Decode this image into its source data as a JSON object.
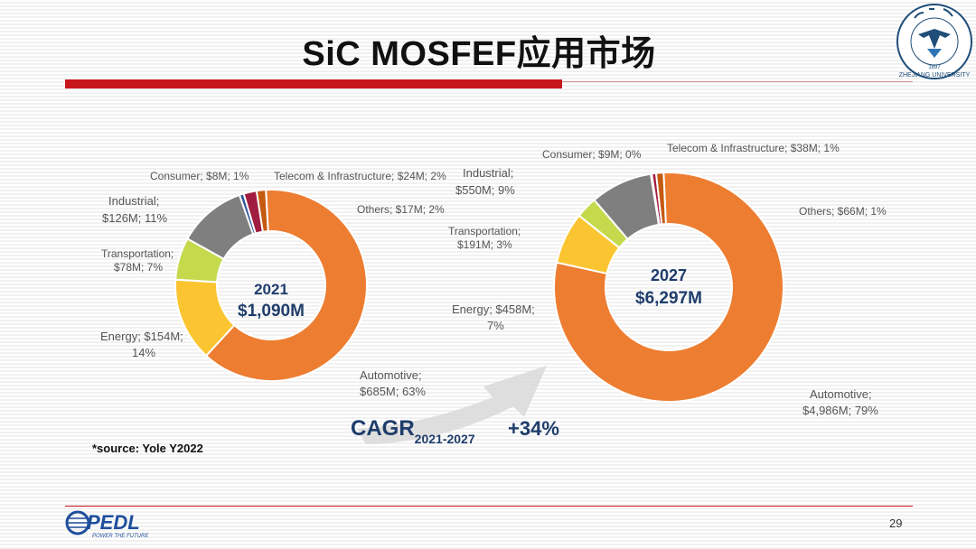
{
  "slide": {
    "title": "SiC MOSFEF应用市场",
    "page_number": "29",
    "source_note": "*source: Yole Y2022",
    "logo_text": "PEDL",
    "logo_tagline": "POWER THE FUTURE",
    "seal_text": "ZHEJIANG UNIVERSITY",
    "seal_year": "1897"
  },
  "cagr": {
    "prefix": "CAGR",
    "years": "2021-2027",
    "value": "+34%"
  },
  "colors": {
    "Automotive": "#ed7d31",
    "Energy": "#fbc531",
    "Transportation": "#c5d94c",
    "Industrial": "#7f7f7f",
    "Consumer": "#2f5597",
    "Telecom & Infrastructure": "#a11d3f",
    "Others": "#c55a11"
  },
  "chart_data": [
    {
      "type": "pie",
      "donut": true,
      "center_year": "2021",
      "center_value": "$1,090M",
      "slices": [
        {
          "name": "Automotive",
          "value": 685,
          "label1": "Automotive;",
          "label2": "$685M; 63%"
        },
        {
          "name": "Energy",
          "value": 154,
          "label1": "Energy; $154M;",
          "label2": "14%"
        },
        {
          "name": "Transportation",
          "value": 78,
          "label1": "Transportation;",
          "label2": "$78M; 7%"
        },
        {
          "name": "Industrial",
          "value": 126,
          "label1": "Industrial;",
          "label2": "$126M; 11%"
        },
        {
          "name": "Consumer",
          "value": 8,
          "label1": "Consumer; $8M; 1%",
          "label2": ""
        },
        {
          "name": "Telecom & Infrastructure",
          "value": 24,
          "label1": "Telecom & Infrastructure; $24M; 2%",
          "label2": ""
        },
        {
          "name": "Others",
          "value": 17,
          "label1": "Others; $17M; 2%",
          "label2": ""
        }
      ]
    },
    {
      "type": "pie",
      "donut": true,
      "center_year": "2027",
      "center_value": "$6,297M",
      "slices": [
        {
          "name": "Automotive",
          "value": 4986,
          "label1": "Automotive;",
          "label2": "$4,986M; 79%"
        },
        {
          "name": "Energy",
          "value": 458,
          "label1": "Energy; $458M;",
          "label2": "7%"
        },
        {
          "name": "Transportation",
          "value": 191,
          "label1": "Transportation;",
          "label2": "$191M; 3%"
        },
        {
          "name": "Industrial",
          "value": 550,
          "label1": "Industrial;",
          "label2": "$550M; 9%"
        },
        {
          "name": "Consumer",
          "value": 9,
          "label1": "Consumer; $9M; 0%",
          "label2": ""
        },
        {
          "name": "Telecom & Infrastructure",
          "value": 38,
          "label1": "Telecom & Infrastructure; $38M; 1%",
          "label2": ""
        },
        {
          "name": "Others",
          "value": 66,
          "label1": "Others; $66M; 1%",
          "label2": ""
        }
      ]
    }
  ]
}
